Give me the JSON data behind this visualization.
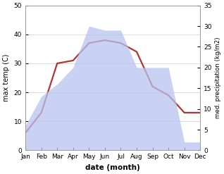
{
  "months": [
    "Jan",
    "Feb",
    "Mar",
    "Apr",
    "May",
    "Jun",
    "Jul",
    "Aug",
    "Sep",
    "Oct",
    "Nov",
    "Dec"
  ],
  "temperature": [
    6,
    13,
    30,
    31,
    37,
    38,
    37,
    34,
    22,
    19,
    13,
    13
  ],
  "precipitation": [
    6,
    13,
    16,
    20,
    30,
    29,
    29,
    20,
    20,
    20,
    2,
    2
  ],
  "temp_ylim": [
    0,
    50
  ],
  "precip_ylim": [
    0,
    35
  ],
  "temp_color": "#b03535",
  "precip_fill_color": "#b8c4ef",
  "precip_fill_alpha": 0.75,
  "xlabel": "date (month)",
  "ylabel_left": "max temp (C)",
  "ylabel_right": "med. precipitation (kg/m2)",
  "bg_color": "#ffffff",
  "grid_color": "#d0d0d0"
}
